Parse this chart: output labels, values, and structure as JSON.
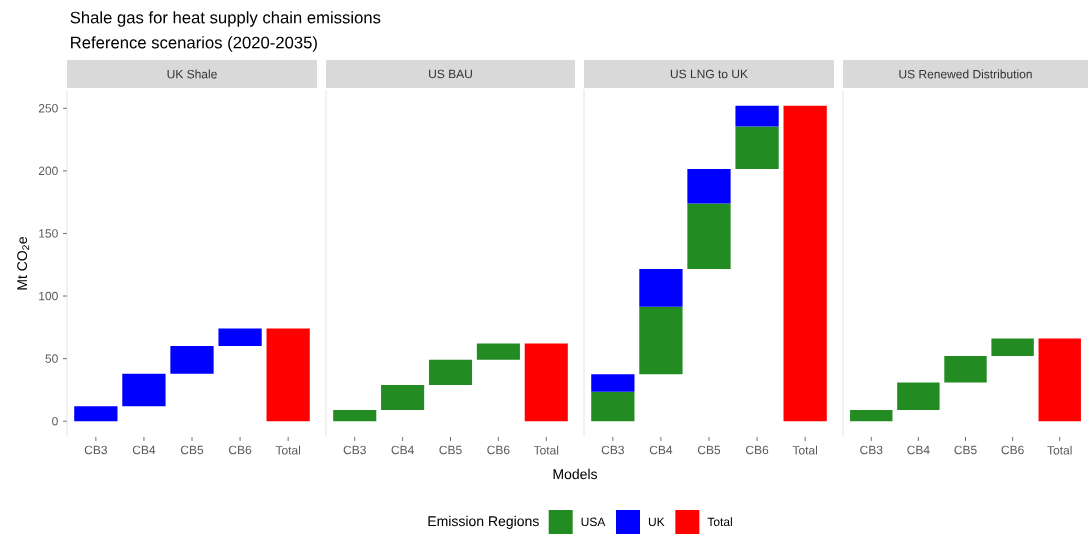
{
  "chart_data": [
    {
      "type": "bar",
      "title": "UK Shale",
      "ylabel": "Mt CO$_{2}$e",
      "annotations": [
        "Shale gas for heat supply chain emissions",
        "Reference scenarios (2020-2035)"
      ],
      "categories": [
        "CB3",
        "CB4",
        "CB5",
        "CB6",
        "Total"
      ],
      "ylim": [
        -12.6,
        264.6
      ],
      "yticks": [
        0,
        50,
        100,
        150,
        200,
        250
      ],
      "series": [
        {
          "color": "#0000ff",
          "values": [
            12,
            26,
            22,
            14,
            null
          ],
          "base": [
            0,
            12,
            38,
            60,
            null
          ]
        },
        {
          "color": "#ff0000",
          "values": [
            null,
            null,
            null,
            null,
            74
          ],
          "base": [
            null,
            null,
            null,
            null,
            0
          ]
        }
      ]
    },
    {
      "type": "bar",
      "title": "US BAU",
      "xlabel": "Models",
      "categories": [
        "CB3",
        "CB4",
        "CB5",
        "CB6",
        "Total"
      ],
      "ylim": [
        -12.6,
        264.6
      ],
      "tick_labels": "x",
      "series": [
        {
          "color": "#228b22",
          "values": [
            9,
            20,
            20,
            13,
            null
          ],
          "base": [
            0,
            9,
            29,
            49,
            null
          ]
        },
        {
          "color": "#ff0000",
          "values": [
            null,
            null,
            null,
            null,
            62
          ],
          "base": [
            null,
            null,
            null,
            null,
            0
          ]
        }
      ]
    },
    {
      "type": "bar",
      "title": "US LNG to UK",
      "legend": "bottom",
      "legend_title": "Emission Regions",
      "categories": [
        "CB3",
        "CB4",
        "CB5",
        "CB6",
        "Total"
      ],
      "ylim": [
        -12.6,
        264.6
      ],
      "tick_labels": "x",
      "series": [
        {
          "name": "USA",
          "color": "#228b22",
          "values": [
            23.5,
            54,
            52.5,
            34,
            null
          ],
          "base": [
            0,
            37.5,
            121.5,
            201.5,
            null
          ]
        },
        {
          "name": "UK",
          "color": "#0000ff",
          "values": [
            14,
            30,
            27.5,
            16.5,
            null
          ],
          "base": [
            23.5,
            91.5,
            174,
            235.5,
            null
          ]
        },
        {
          "name": "Total",
          "color": "#ff0000",
          "values": [
            null,
            null,
            null,
            null,
            252
          ],
          "base": [
            null,
            null,
            null,
            null,
            0
          ]
        }
      ]
    },
    {
      "type": "bar",
      "title": "US Renewed Distribution",
      "categories": [
        "CB3",
        "CB4",
        "CB5",
        "CB6",
        "Total"
      ],
      "ylim": [
        -12.6,
        264.6
      ],
      "tick_labels": "x",
      "series": [
        {
          "color": "#228b22",
          "values": [
            9,
            22,
            21,
            14,
            null
          ],
          "base": [
            0,
            9,
            31,
            52,
            null
          ]
        },
        {
          "color": "#ff0000",
          "values": [
            null,
            null,
            null,
            null,
            66
          ],
          "base": [
            null,
            null,
            null,
            null,
            0
          ]
        }
      ]
    }
  ]
}
